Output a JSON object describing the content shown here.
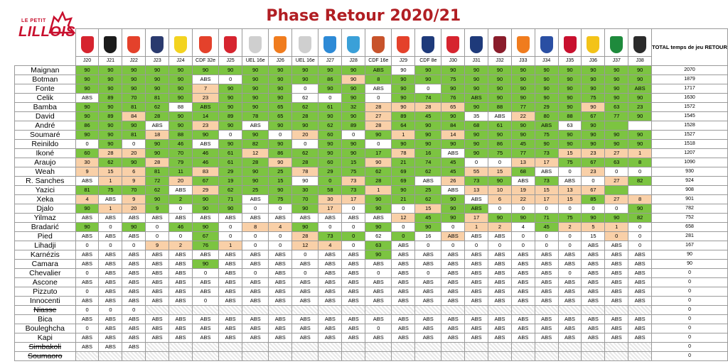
{
  "title": "Phase Retour 2020/21",
  "brand": {
    "small": "LE PETIT",
    "big": "LILLOIS"
  },
  "total_header": "TOTAL temps de jeu RETOUR",
  "matches": [
    {
      "label": "J20",
      "color": "#d6242f",
      "icon": "reims-crest-icon"
    },
    {
      "label": "J21",
      "color": "#1b1b1b",
      "icon": "rennes-crest-icon"
    },
    {
      "label": "J22",
      "color": "#e4412b",
      "icon": "dijon-crest-icon"
    },
    {
      "label": "J23",
      "color": "#2a3a6e",
      "icon": "bordeaux-crest-icon"
    },
    {
      "label": "J24",
      "color": "#f3d320",
      "icon": "nantes-crest-icon"
    },
    {
      "label": "CDF 32e",
      "color": "#e4412b",
      "icon": "dijon-crest-icon"
    },
    {
      "label": "J25",
      "color": "#d6242f",
      "icon": "brest-crest-icon"
    },
    {
      "label": "UEL 16e",
      "color": "#cfcfcf",
      "icon": "ajax-crest-icon"
    },
    {
      "label": "J26",
      "color": "#f07c1e",
      "icon": "lorient-crest-icon"
    },
    {
      "label": "UEL 16e",
      "color": "#cfcfcf",
      "icon": "ajax-crest-icon"
    },
    {
      "label": "J27",
      "color": "#2d8ad6",
      "icon": "strasbourg-crest-icon"
    },
    {
      "label": "J28",
      "color": "#3aa0d8",
      "icon": "marseille-crest-icon"
    },
    {
      "label": "CDF 16e",
      "color": "#c8532b",
      "icon": "guingamp-crest-icon"
    },
    {
      "label": "J29",
      "color": "#e4412b",
      "icon": "dijon-crest-icon"
    },
    {
      "label": "CDF 8e",
      "color": "#1e3a7a",
      "icon": "psg-crest-icon"
    },
    {
      "label": "J30",
      "color": "#d6242f",
      "icon": "nimes-crest-icon"
    },
    {
      "label": "J31",
      "color": "#1e3a7a",
      "icon": "psg-crest-icon"
    },
    {
      "label": "J32",
      "color": "#8a1c2b",
      "icon": "metz-crest-icon"
    },
    {
      "label": "J33",
      "color": "#f07c1e",
      "icon": "montpellier-crest-icon"
    },
    {
      "label": "J34",
      "color": "#2a4fa3",
      "icon": "lyon-crest-icon"
    },
    {
      "label": "J35",
      "color": "#c8102e",
      "icon": "nice-crest-icon"
    },
    {
      "label": "J36",
      "color": "#f3c318",
      "icon": "lens-crest-icon"
    },
    {
      "label": "J37",
      "color": "#1e8a3c",
      "icon": "saint-etienne-crest-icon"
    },
    {
      "label": "J38",
      "color": "#2b2b2b",
      "icon": "angers-crest-icon"
    }
  ],
  "players": [
    {
      "name": "Maignan",
      "total": "2070",
      "values": [
        "90",
        "90",
        "90",
        "90",
        "90",
        "90",
        "90",
        "90",
        "90",
        "90",
        "90",
        "90",
        "ABS",
        "90",
        "90",
        "90",
        "90",
        "90",
        "90",
        "90",
        "90",
        "90",
        "90",
        "90"
      ],
      "fills": "gggggggggggggwgggggggggg",
      "strike": false
    },
    {
      "name": "Botman",
      "total": "1879",
      "values": [
        "90",
        "90",
        "90",
        "90",
        "90",
        "ABS",
        "0",
        "90",
        "90",
        "90",
        "86",
        "90",
        "8",
        "90",
        "90",
        "75",
        "90",
        "90",
        "90",
        "90",
        "90",
        "90",
        "90",
        "90"
      ],
      "fills": "gggggwwggggogggggggggggg",
      "strike": false
    },
    {
      "name": "Fonte",
      "total": "1717",
      "values": [
        "90",
        "90",
        "90",
        "90",
        "90",
        "7",
        "90",
        "90",
        "90",
        "0",
        "90",
        "90",
        "ABS",
        "90",
        "0",
        "90",
        "90",
        "90",
        "90",
        "90",
        "90",
        "90",
        "90",
        "ABS"
      ],
      "fills": "gggggogggwggwgwgggggggggw",
      "strike": false
    },
    {
      "name": "Celik",
      "total": "1630",
      "values": [
        "ABS",
        "89",
        "70",
        "81",
        "90",
        "23",
        "90",
        "90",
        "90",
        "62",
        "0",
        "90",
        "0",
        "90",
        "74",
        "76",
        "ABS",
        "90",
        "90",
        "90",
        "90",
        "75",
        "90",
        "90"
      ],
      "fills": "wggggogggwwgwggggggggggg",
      "strike": false
    },
    {
      "name": "Bamba",
      "total": "1572",
      "values": [
        "90",
        "90",
        "81",
        "62",
        "88",
        "ABS",
        "90",
        "90",
        "65",
        "62",
        "61",
        "32",
        "28",
        "90",
        "28",
        "65",
        "90",
        "88",
        "77",
        "29",
        "90",
        "90",
        "63",
        "23"
      ],
      "fills": "ggggwgggggggoooogggggoggo",
      "strike": false
    },
    {
      "name": "David",
      "total": "1545",
      "values": [
        "90",
        "89",
        "84",
        "28",
        "90",
        "14",
        "89",
        "78",
        "65",
        "28",
        "90",
        "90",
        "27",
        "89",
        "45",
        "90",
        "35",
        "ABS",
        "22",
        "80",
        "88",
        "67",
        "77",
        "90"
      ],
      "fills": "ggogggggggggogggwwoggggg",
      "strike": false
    },
    {
      "name": "André",
      "total": "1528",
      "values": [
        "86",
        "90",
        "90",
        "ABS",
        "90",
        "23",
        "90",
        "ABS",
        "90",
        "90",
        "62",
        "89",
        "28",
        "64",
        "90",
        "84",
        "68",
        "61",
        "90",
        "ABS",
        "63",
        "90",
        "",
        ""
      ],
      "fills": "gggwgogwggggogggggggwgg",
      "strike": false
    },
    {
      "name": "Soumaré",
      "total": "1527",
      "values": [
        "90",
        "90",
        "81",
        "18",
        "88",
        "90",
        "0",
        "90",
        "0",
        "20",
        "60",
        "0",
        "90",
        "1",
        "90",
        "14",
        "90",
        "90",
        "90",
        "75",
        "90",
        "90",
        "90",
        "90"
      ],
      "fills": "gggoggwgwogwgogoggggggggg",
      "strike": false
    },
    {
      "name": "Reinildo",
      "total": "1518",
      "values": [
        "0",
        "90",
        "0",
        "90",
        "46",
        "ABS",
        "90",
        "82",
        "90",
        "0",
        "90",
        "90",
        "0",
        "90",
        "90",
        "90",
        "90",
        "86",
        "45",
        "90",
        "90",
        "90",
        "90",
        "90"
      ],
      "fills": "wgwggwgggwggwggggggggggg",
      "strike": false
    },
    {
      "name": "Ikoné",
      "total": "1207",
      "values": [
        "60",
        "28",
        "20",
        "90",
        "70",
        "46",
        "61",
        "12",
        "86",
        "62",
        "90",
        "90",
        "17",
        "78",
        "16",
        "ABS",
        "90",
        "75",
        "77",
        "73",
        "15",
        "23",
        "27",
        "1"
      ],
      "fills": "googgggogggggogwggggoooo",
      "strike": false
    },
    {
      "name": "Araujo",
      "total": "1090",
      "values": [
        "30",
        "62",
        "90",
        "28",
        "79",
        "46",
        "61",
        "28",
        "90",
        "28",
        "60",
        "15",
        "90",
        "21",
        "74",
        "45",
        "0",
        "0",
        "13",
        "17",
        "75",
        "67",
        "63",
        "8"
      ],
      "fills": "oggoggggogggogggwwooggggo",
      "strike": false
    },
    {
      "name": "Weah",
      "total": "930",
      "values": [
        "9",
        "15",
        "6",
        "81",
        "11",
        "83",
        "29",
        "90",
        "25",
        "78",
        "29",
        "75",
        "62",
        "69",
        "62",
        "45",
        "55",
        "15",
        "68",
        "ABS",
        "0",
        "23",
        "0",
        "0"
      ],
      "fills": "oooggogggoggggggoogwwoww",
      "strike": false
    },
    {
      "name": "R. Sanches",
      "total": "924",
      "values": [
        "ABS",
        "1",
        "9",
        "72",
        "20",
        "67",
        "19",
        "90",
        "15",
        "90",
        "0",
        "73",
        "28",
        "69",
        "ABS",
        "26",
        "73",
        "90",
        "ABS",
        "73",
        "ABS",
        "0",
        "27",
        "82"
      ],
      "fills": "woogoggggwgoggwoggwgwwog",
      "strike": false
    },
    {
      "name": "Yazici",
      "total": "908",
      "values": [
        "81",
        "75",
        "70",
        "62",
        "ABS",
        "29",
        "62",
        "25",
        "90",
        "30",
        "58",
        "73",
        "1",
        "90",
        "25",
        "ABS",
        "13",
        "10",
        "19",
        "15",
        "13",
        "67",
        "",
        ""
      ],
      "fills": "ggggwoggggggoggwoooooog",
      "strike": false
    },
    {
      "name": "Xeka",
      "total": "901",
      "values": [
        "4",
        "ABS",
        "9",
        "90",
        "2",
        "90",
        "71",
        "ABS",
        "75",
        "70",
        "30",
        "17",
        "90",
        "21",
        "62",
        "90",
        "ABS",
        "6",
        "22",
        "17",
        "15",
        "85",
        "27",
        "8"
      ],
      "fills": "owoggggwggooggggwoooogoo",
      "strike": false
    },
    {
      "name": "Djalo",
      "total": "782",
      "values": [
        "90",
        "1",
        "20",
        "9",
        "0",
        "90",
        "90",
        "0",
        "0",
        "90",
        "17",
        "0",
        "90",
        "0",
        "15",
        "90",
        "ABS",
        "0",
        "0",
        "0",
        "0",
        "0",
        "0",
        "90"
      ],
      "fills": "googwggwwgowgwoggwwwwwwg",
      "strike": false
    },
    {
      "name": "Yilmaz",
      "total": "752",
      "values": [
        "ABS",
        "ABS",
        "ABS",
        "ABS",
        "ABS",
        "ABS",
        "ABS",
        "ABS",
        "ABS",
        "ABS",
        "ABS",
        "ABS",
        "ABS",
        "12",
        "45",
        "90",
        "17",
        "90",
        "90",
        "71",
        "75",
        "90",
        "90",
        "82"
      ],
      "fills": "wwwwwwwwwwwwwoggogggggggg",
      "strike": false
    },
    {
      "name": "Bradarić",
      "total": "658",
      "values": [
        "90",
        "0",
        "90",
        "0",
        "46",
        "90",
        "0",
        "8",
        "4",
        "90",
        "0",
        "0",
        "90",
        "0",
        "90",
        "0",
        "1",
        "2",
        "4",
        "45",
        "2",
        "5",
        "1",
        "0"
      ],
      "fills": "gwgwggwoogwwgwgwoowgoooww",
      "strike": false
    },
    {
      "name": "Pied",
      "total": "281",
      "values": [
        "ABS",
        "ABS",
        "ABS",
        "0",
        "0",
        "67",
        "0",
        "0",
        "0",
        "28",
        "73",
        "0",
        "62",
        "0",
        "16",
        "ABS",
        "ABS",
        "ABS",
        "0",
        "0",
        "0",
        "15",
        "0",
        "0"
      ],
      "fills": "wwwwwgwwwoggwgwowwwwwwoww",
      "strike": false
    },
    {
      "name": "Lihadji",
      "total": "167",
      "values": [
        "0",
        "0",
        "0",
        "9",
        "2",
        "76",
        "1",
        "0",
        "0",
        "12",
        "4",
        "0",
        "63",
        "ABS",
        "0",
        "0",
        "0",
        "0",
        "0",
        "0",
        "0",
        "ABS",
        "ABS",
        "0"
      ],
      "fills": "wwwoogowwoowgwwwwwwwwwww",
      "strike": false
    },
    {
      "name": "Karnézis",
      "total": "90",
      "values": [
        "ABS",
        "ABS",
        "ABS",
        "ABS",
        "ABS",
        "ABS",
        "ABS",
        "ABS",
        "ABS",
        "0",
        "ABS",
        "ABS",
        "90",
        "ABS",
        "ABS",
        "ABS",
        "ABS",
        "ABS",
        "ABS",
        "ABS",
        "ABS",
        "ABS",
        "ABS",
        "ABS"
      ],
      "fills": "wwwwwwwwwwwwgwwwwwwwwwww",
      "strike": false
    },
    {
      "name": "Camara",
      "total": "90",
      "values": [
        "ABS",
        "ABS",
        "ABS",
        "ABS",
        "ABS",
        "90",
        "ABS",
        "ABS",
        "ABS",
        "ABS",
        "ABS",
        "ABS",
        "ABS",
        "ABS",
        "ABS",
        "ABS",
        "ABS",
        "ABS",
        "ABS",
        "ABS",
        "ABS",
        "ABS",
        "ABS",
        "ABS"
      ],
      "fills": "wwwwwgwwwwwwwwwwwwwwwwww",
      "strike": false
    },
    {
      "name": "Chevalier",
      "total": "0",
      "values": [
        "0",
        "ABS",
        "ABS",
        "ABS",
        "ABS",
        "0",
        "ABS",
        "0",
        "ABS",
        "0",
        "ABS",
        "ABS",
        "0",
        "ABS",
        "0",
        "ABS",
        "ABS",
        "ABS",
        "ABS",
        "ABS",
        "0",
        "ABS",
        "ABS",
        "ABS"
      ],
      "fills": "wwwwwwwwwwwwwwwwwwwwwwww",
      "strike": false
    },
    {
      "name": "Ascone",
      "total": "0",
      "values": [
        "ABS",
        "ABS",
        "ABS",
        "ABS",
        "ABS",
        "ABS",
        "ABS",
        "ABS",
        "ABS",
        "ABS",
        "ABS",
        "ABS",
        "ABS",
        "ABS",
        "ABS",
        "ABS",
        "ABS",
        "ABS",
        "ABS",
        "ABS",
        "ABS",
        "ABS",
        "ABS",
        "ABS"
      ],
      "fills": "wwwwwwwwwwwwwwwwwwwwwwww",
      "strike": false
    },
    {
      "name": "Pizzuto",
      "total": "0",
      "values": [
        "0",
        "ABS",
        "ABS",
        "ABS",
        "ABS",
        "ABS",
        "ABS",
        "ABS",
        "ABS",
        "ABS",
        "ABS",
        "ABS",
        "ABS",
        "ABS",
        "ABS",
        "ABS",
        "ABS",
        "ABS",
        "ABS",
        "ABS",
        "ABS",
        "ABS",
        "ABS",
        "ABS"
      ],
      "fills": "wwwwwwwwwwwwwwwwwwwwwwww",
      "strike": false
    },
    {
      "name": "Innocenti",
      "total": "0",
      "values": [
        "ABS",
        "ABS",
        "ABS",
        "ABS",
        "ABS",
        "0",
        "ABS",
        "ABS",
        "ABS",
        "ABS",
        "ABS",
        "ABS",
        "ABS",
        "ABS",
        "ABS",
        "ABS",
        "ABS",
        "ABS",
        "ABS",
        "ABS",
        "ABS",
        "ABS",
        "ABS",
        "ABS"
      ],
      "fills": "wwwwwwwwwwwwwwwwwwwwwwww",
      "strike": false
    },
    {
      "name": "Niasse",
      "total": "0",
      "values": [
        "0",
        "0",
        "0",
        "",
        "",
        "",
        "",
        "",
        "",
        "",
        "",
        "",
        "",
        "",
        "",
        "",
        "",
        "",
        "",
        "",
        "",
        "",
        "",
        ""
      ],
      "fills": "wwwhhhhhhhhhhhhhhhhhhhhh",
      "strike": true
    },
    {
      "name": "Bica",
      "total": "0",
      "values": [
        "ABS",
        "ABS",
        "ABS",
        "ABS",
        "ABS",
        "ABS",
        "ABS",
        "ABS",
        "ABS",
        "ABS",
        "ABS",
        "ABS",
        "ABS",
        "ABS",
        "ABS",
        "ABS",
        "ABS",
        "ABS",
        "ABS",
        "ABS",
        "ABS",
        "ABS",
        "ABS",
        "ABS"
      ],
      "fills": "wwwwwwwwwwwwwwwwwwwwwwww",
      "strike": false
    },
    {
      "name": "Bouleghcha",
      "total": "0",
      "values": [
        "0",
        "ABS",
        "ABS",
        "ABS",
        "ABS",
        "ABS",
        "ABS",
        "ABS",
        "ABS",
        "ABS",
        "ABS",
        "ABS",
        "0",
        "ABS",
        "ABS",
        "ABS",
        "ABS",
        "ABS",
        "ABS",
        "ABS",
        "ABS",
        "ABS",
        "ABS",
        "ABS"
      ],
      "fills": "wwwwwwwwwwwwwwwwwwwwwwww",
      "strike": false
    },
    {
      "name": "Kapi",
      "total": "0",
      "values": [
        "ABS",
        "ABS",
        "ABS",
        "ABS",
        "ABS",
        "ABS",
        "ABS",
        "ABS",
        "ABS",
        "ABS",
        "ABS",
        "ABS",
        "ABS",
        "ABS",
        "ABS",
        "ABS",
        "ABS",
        "ABS",
        "ABS",
        "ABS",
        "ABS",
        "ABS",
        "ABS",
        "ABS"
      ],
      "fills": "wwwwwwwwwwwwwwwwwwwwwwww",
      "strike": false
    },
    {
      "name": "Simbakoli",
      "total": "0",
      "values": [
        "ABS",
        "ABS",
        "ABS",
        "",
        "",
        "",
        "",
        "",
        "",
        "",
        "",
        "",
        "",
        "",
        "",
        "",
        "",
        "",
        "",
        "",
        "",
        "",
        "",
        ""
      ],
      "fills": "wwwhhhhhhhhhhhhhhhhhhhhh",
      "strike": true
    },
    {
      "name": "Soumaoro",
      "total": "0",
      "values": [
        "",
        "",
        "",
        "",
        "",
        "",
        "",
        "",
        "",
        "",
        "",
        "",
        "",
        "",
        "",
        "",
        "",
        "",
        "",
        "",
        "",
        "",
        "",
        ""
      ],
      "fills": "hhhhhhhhhhhhhhhhhhhhhhhh",
      "strike": true
    }
  ]
}
